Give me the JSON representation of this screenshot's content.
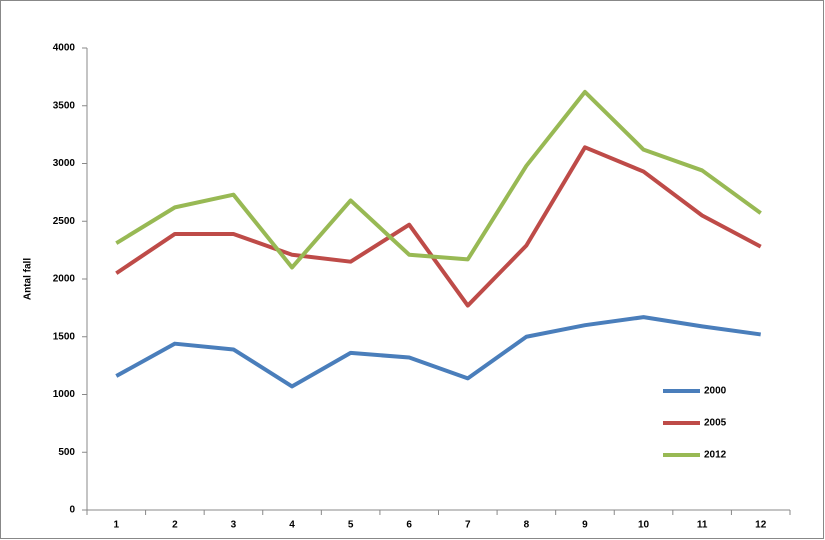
{
  "chart_data": {
    "type": "line",
    "ylabel": "Antal fall",
    "categories": [
      "1",
      "2",
      "3",
      "4",
      "5",
      "6",
      "7",
      "8",
      "9",
      "10",
      "11",
      "12"
    ],
    "series": [
      {
        "name": "2000",
        "color": "#4a7ebb",
        "values": [
          1160,
          1440,
          1390,
          1070,
          1360,
          1320,
          1140,
          1500,
          1600,
          1670,
          1590,
          1520
        ]
      },
      {
        "name": "2005",
        "color": "#be4b48",
        "values": [
          2050,
          2390,
          2390,
          2210,
          2150,
          2470,
          1770,
          2290,
          3140,
          2930,
          2550,
          2280
        ]
      },
      {
        "name": "2012",
        "color": "#98b954",
        "values": [
          2310,
          2620,
          2730,
          2100,
          2680,
          2210,
          2170,
          2980,
          3620,
          3120,
          2940,
          2570
        ]
      }
    ],
    "ylim": [
      0,
      4000
    ],
    "yticks": [
      0,
      500,
      1000,
      1500,
      2000,
      2500,
      3000,
      3500,
      4000
    ],
    "legend": "lower right"
  }
}
